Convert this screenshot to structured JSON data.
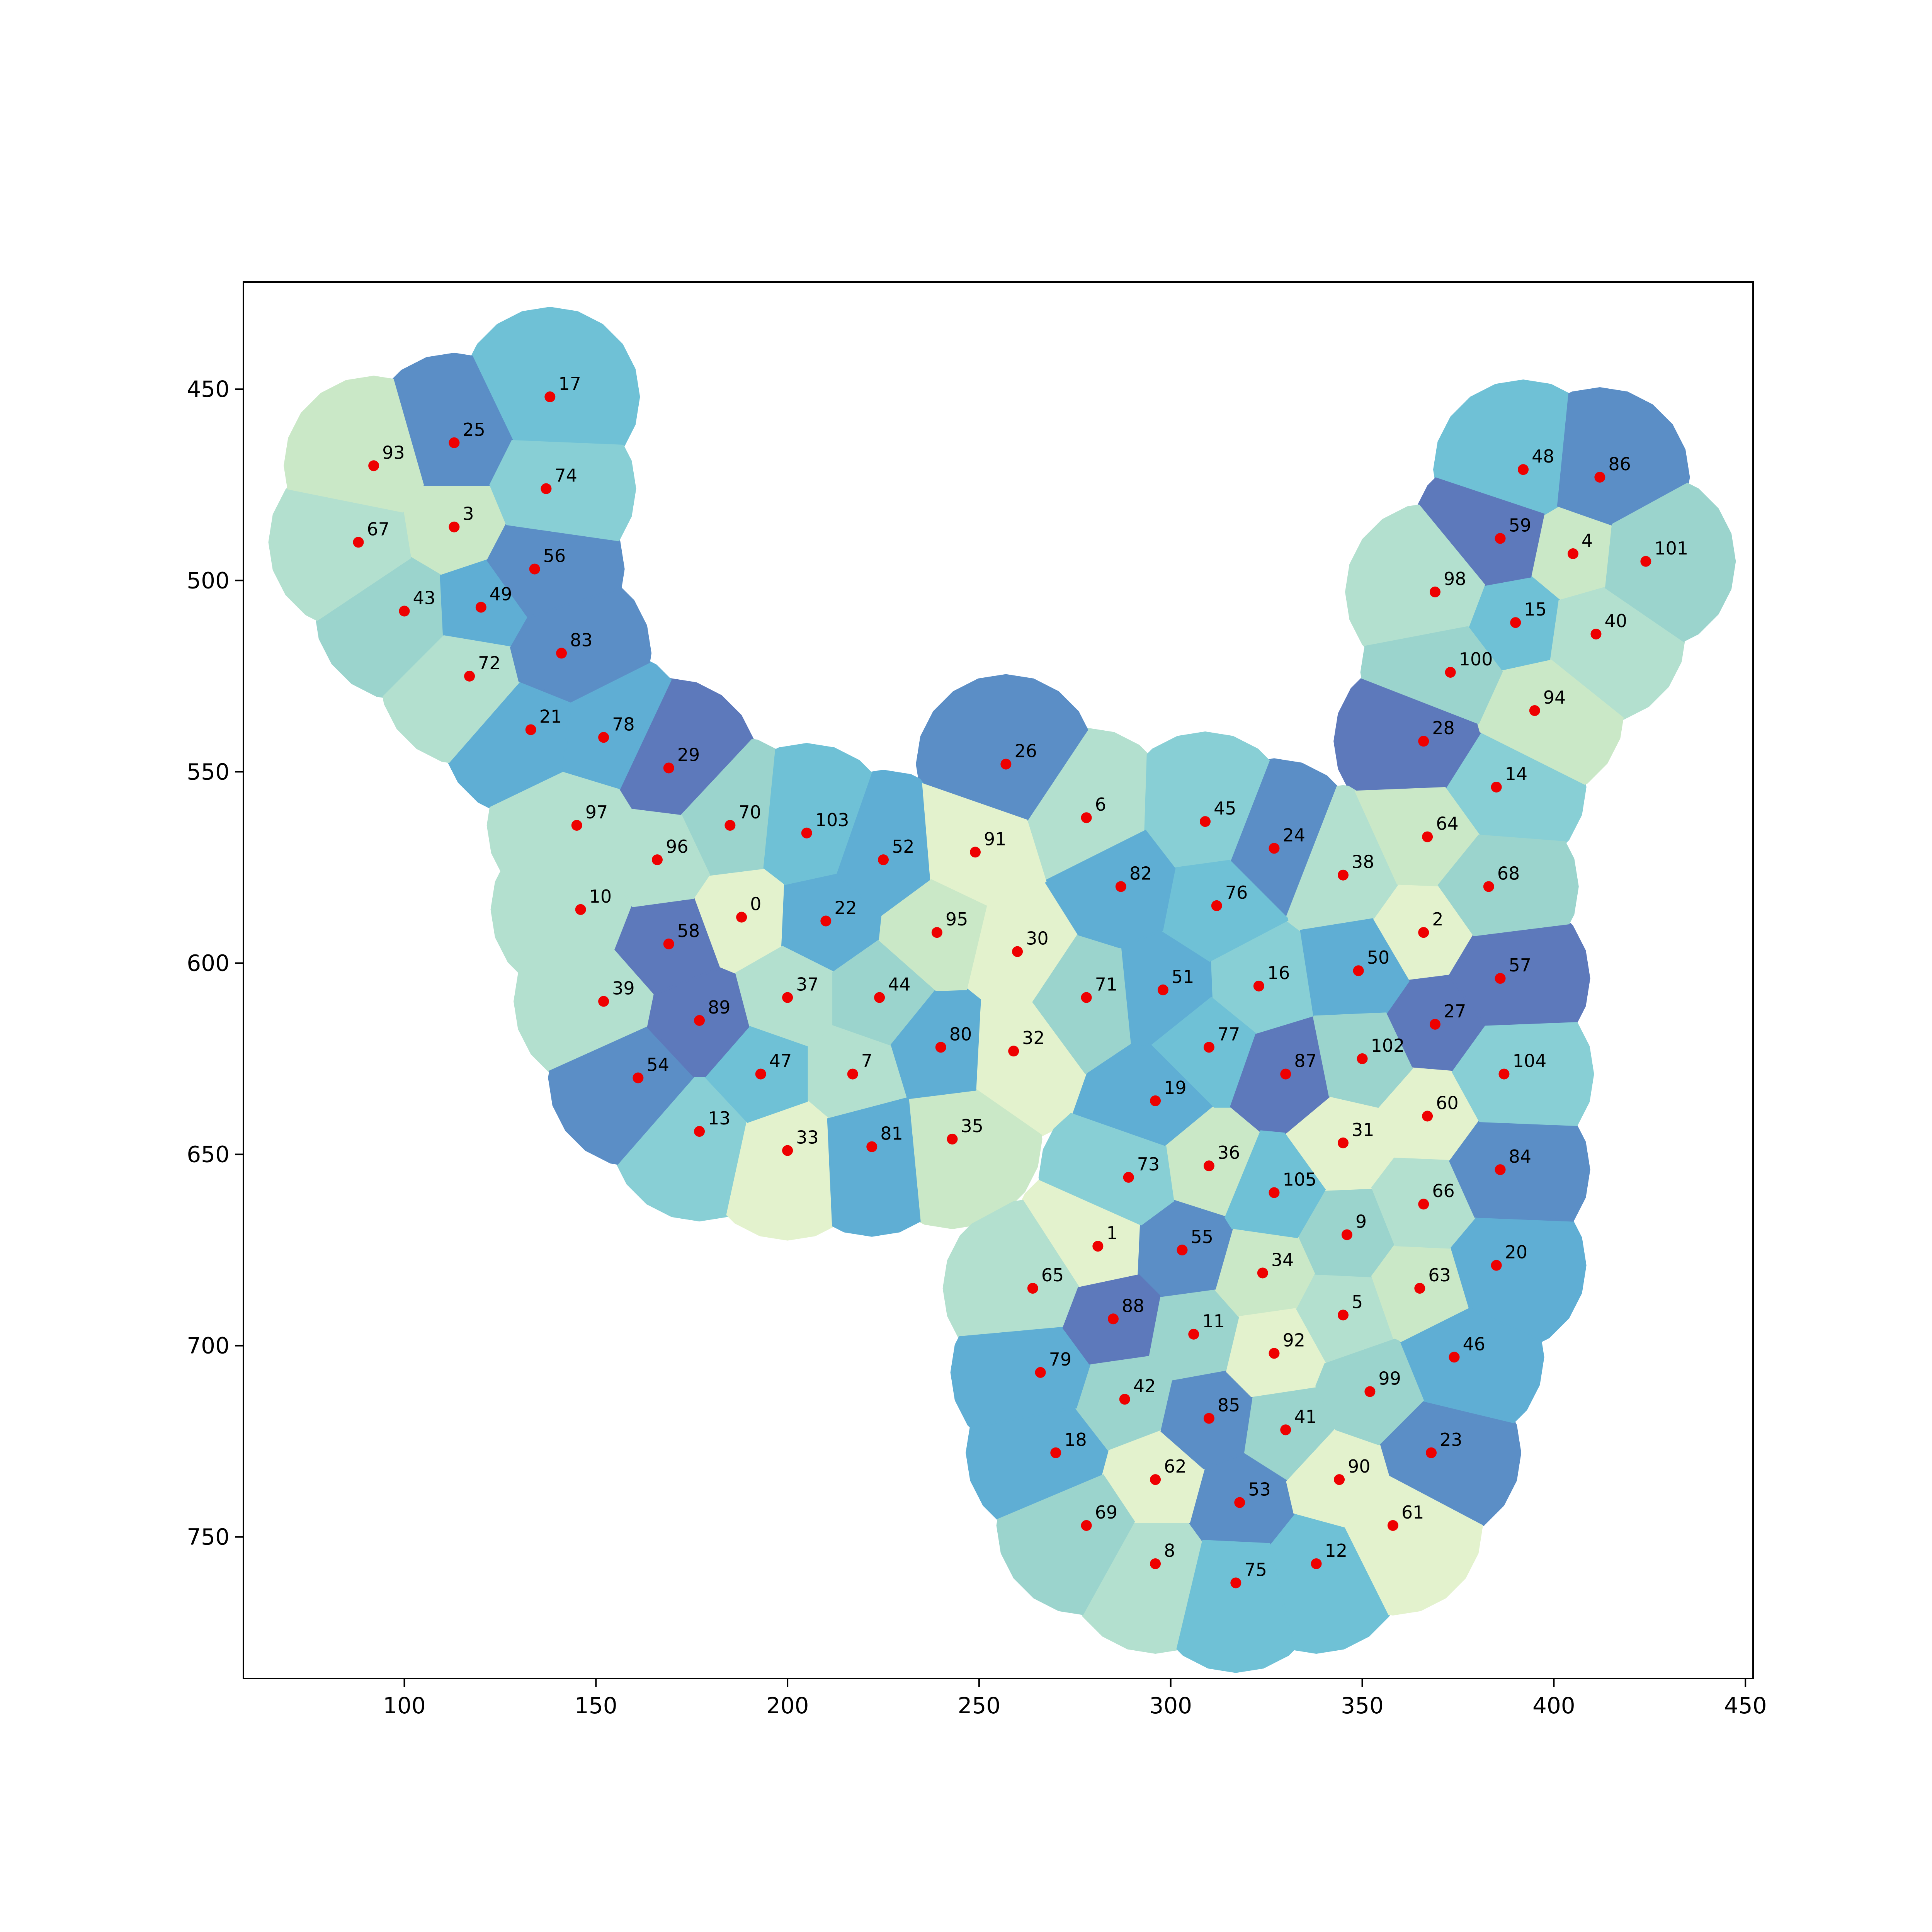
{
  "chart_data": {
    "type": "scatter",
    "title": "",
    "xlabel": "",
    "ylabel": "",
    "xlim": [
      58,
      452
    ],
    "ylim": [
      787,
      422
    ],
    "y_inverted": true,
    "grid": false,
    "legend": "none",
    "x_ticks": [
      "100",
      "150",
      "200",
      "250",
      "300",
      "350",
      "400",
      "450"
    ],
    "y_ticks": [
      "450",
      "500",
      "550",
      "600",
      "650",
      "700",
      "750"
    ],
    "marker_color": "#ee0000",
    "region_palette": [
      "#e3f2cd",
      "#cae8c7",
      "#b3e0cf",
      "#9bd4cd",
      "#88cfd5",
      "#6fc1d6",
      "#5faed4",
      "#5b8ec6",
      "#5d79bb"
    ],
    "points": [
      {
        "id": "0",
        "x": 188,
        "y": 588,
        "shade": 0
      },
      {
        "id": "1",
        "x": 281,
        "y": 674,
        "shade": 0
      },
      {
        "id": "2",
        "x": 366,
        "y": 592,
        "shade": 0
      },
      {
        "id": "3",
        "x": 113,
        "y": 486,
        "shade": 1
      },
      {
        "id": "4",
        "x": 405,
        "y": 493,
        "shade": 1
      },
      {
        "id": "5",
        "x": 345,
        "y": 692,
        "shade": 2
      },
      {
        "id": "6",
        "x": 278,
        "y": 562,
        "shade": 2
      },
      {
        "id": "7",
        "x": 217,
        "y": 629,
        "shade": 2
      },
      {
        "id": "8",
        "x": 296,
        "y": 757,
        "shade": 2
      },
      {
        "id": "9",
        "x": 346,
        "y": 671,
        "shade": 3
      },
      {
        "id": "10",
        "x": 146,
        "y": 586,
        "shade": 2
      },
      {
        "id": "11",
        "x": 306,
        "y": 697,
        "shade": 3
      },
      {
        "id": "12",
        "x": 338,
        "y": 757,
        "shade": 5
      },
      {
        "id": "13",
        "x": 177,
        "y": 644,
        "shade": 4
      },
      {
        "id": "14",
        "x": 385,
        "y": 554,
        "shade": 4
      },
      {
        "id": "15",
        "x": 390,
        "y": 511,
        "shade": 5
      },
      {
        "id": "16",
        "x": 323,
        "y": 606,
        "shade": 4
      },
      {
        "id": "17",
        "x": 138,
        "y": 452,
        "shade": 5
      },
      {
        "id": "18",
        "x": 270,
        "y": 728,
        "shade": 6
      },
      {
        "id": "19",
        "x": 296,
        "y": 636,
        "shade": 6
      },
      {
        "id": "20",
        "x": 385,
        "y": 679,
        "shade": 6
      },
      {
        "id": "21",
        "x": 133,
        "y": 539,
        "shade": 6
      },
      {
        "id": "22",
        "x": 210,
        "y": 589,
        "shade": 6
      },
      {
        "id": "23",
        "x": 368,
        "y": 728,
        "shade": 7
      },
      {
        "id": "24",
        "x": 327,
        "y": 570,
        "shade": 7
      },
      {
        "id": "25",
        "x": 113,
        "y": 464,
        "shade": 7
      },
      {
        "id": "26",
        "x": 257,
        "y": 548,
        "shade": 7
      },
      {
        "id": "27",
        "x": 369,
        "y": 616,
        "shade": 8
      },
      {
        "id": "28",
        "x": 366,
        "y": 542,
        "shade": 8
      },
      {
        "id": "29",
        "x": 169,
        "y": 549,
        "shade": 8
      },
      {
        "id": "30",
        "x": 260,
        "y": 597,
        "shade": 0
      },
      {
        "id": "31",
        "x": 345,
        "y": 647,
        "shade": 0
      },
      {
        "id": "32",
        "x": 259,
        "y": 623,
        "shade": 0
      },
      {
        "id": "33",
        "x": 200,
        "y": 649,
        "shade": 0
      },
      {
        "id": "34",
        "x": 324,
        "y": 681,
        "shade": 1
      },
      {
        "id": "35",
        "x": 243,
        "y": 646,
        "shade": 1
      },
      {
        "id": "36",
        "x": 310,
        "y": 653,
        "shade": 1
      },
      {
        "id": "37",
        "x": 200,
        "y": 609,
        "shade": 2
      },
      {
        "id": "38",
        "x": 345,
        "y": 577,
        "shade": 2
      },
      {
        "id": "39",
        "x": 152,
        "y": 610,
        "shade": 2
      },
      {
        "id": "40",
        "x": 411,
        "y": 514,
        "shade": 2
      },
      {
        "id": "41",
        "x": 330,
        "y": 722,
        "shade": 3
      },
      {
        "id": "42",
        "x": 288,
        "y": 714,
        "shade": 3
      },
      {
        "id": "43",
        "x": 100,
        "y": 508,
        "shade": 3
      },
      {
        "id": "44",
        "x": 224,
        "y": 609,
        "shade": 3
      },
      {
        "id": "45",
        "x": 309,
        "y": 563,
        "shade": 4
      },
      {
        "id": "46",
        "x": 374,
        "y": 703,
        "shade": 6
      },
      {
        "id": "47",
        "x": 193,
        "y": 629,
        "shade": 5
      },
      {
        "id": "48",
        "x": 392,
        "y": 471,
        "shade": 5
      },
      {
        "id": "49",
        "x": 120,
        "y": 507,
        "shade": 6
      },
      {
        "id": "50",
        "x": 349,
        "y": 602,
        "shade": 6
      },
      {
        "id": "51",
        "x": 298,
        "y": 607,
        "shade": 6
      },
      {
        "id": "52",
        "x": 225,
        "y": 573,
        "shade": 6
      },
      {
        "id": "53",
        "x": 318,
        "y": 741,
        "shade": 7
      },
      {
        "id": "54",
        "x": 161,
        "y": 630,
        "shade": 7
      },
      {
        "id": "55",
        "x": 303,
        "y": 675,
        "shade": 7
      },
      {
        "id": "56",
        "x": 134,
        "y": 497,
        "shade": 7
      },
      {
        "id": "57",
        "x": 386,
        "y": 604,
        "shade": 8
      },
      {
        "id": "58",
        "x": 169,
        "y": 595,
        "shade": 8
      },
      {
        "id": "59",
        "x": 386,
        "y": 489,
        "shade": 8
      },
      {
        "id": "60",
        "x": 367,
        "y": 640,
        "shade": 0
      },
      {
        "id": "61",
        "x": 358,
        "y": 747,
        "shade": 0
      },
      {
        "id": "62",
        "x": 296,
        "y": 735,
        "shade": 0
      },
      {
        "id": "63",
        "x": 365,
        "y": 685,
        "shade": 1
      },
      {
        "id": "64",
        "x": 367,
        "y": 567,
        "shade": 1
      },
      {
        "id": "65",
        "x": 264,
        "y": 685,
        "shade": 2
      },
      {
        "id": "66",
        "x": 366,
        "y": 663,
        "shade": 2
      },
      {
        "id": "67",
        "x": 88,
        "y": 490,
        "shade": 2
      },
      {
        "id": "68",
        "x": 383,
        "y": 580,
        "shade": 3
      },
      {
        "id": "69",
        "x": 278,
        "y": 747,
        "shade": 3
      },
      {
        "id": "70",
        "x": 185,
        "y": 564,
        "shade": 3
      },
      {
        "id": "71",
        "x": 278,
        "y": 609,
        "shade": 3
      },
      {
        "id": "72",
        "x": 117,
        "y": 525,
        "shade": 2
      },
      {
        "id": "73",
        "x": 289,
        "y": 656,
        "shade": 4
      },
      {
        "id": "74",
        "x": 137,
        "y": 476,
        "shade": 4
      },
      {
        "id": "75",
        "x": 317,
        "y": 762,
        "shade": 5
      },
      {
        "id": "76",
        "x": 312,
        "y": 585,
        "shade": 5
      },
      {
        "id": "77",
        "x": 310,
        "y": 622,
        "shade": 5
      },
      {
        "id": "78",
        "x": 152,
        "y": 541,
        "shade": 6
      },
      {
        "id": "79",
        "x": 266,
        "y": 707,
        "shade": 6
      },
      {
        "id": "80",
        "x": 240,
        "y": 622,
        "shade": 6
      },
      {
        "id": "81",
        "x": 222,
        "y": 648,
        "shade": 6
      },
      {
        "id": "82",
        "x": 287,
        "y": 580,
        "shade": 6
      },
      {
        "id": "83",
        "x": 141,
        "y": 519,
        "shade": 7
      },
      {
        "id": "84",
        "x": 386,
        "y": 654,
        "shade": 7
      },
      {
        "id": "85",
        "x": 310,
        "y": 719,
        "shade": 7
      },
      {
        "id": "86",
        "x": 412,
        "y": 473,
        "shade": 7
      },
      {
        "id": "87",
        "x": 330,
        "y": 629,
        "shade": 8
      },
      {
        "id": "88",
        "x": 285,
        "y": 693,
        "shade": 8
      },
      {
        "id": "89",
        "x": 177,
        "y": 615,
        "shade": 8
      },
      {
        "id": "90",
        "x": 344,
        "y": 735,
        "shade": 0
      },
      {
        "id": "91",
        "x": 249,
        "y": 571,
        "shade": 0
      },
      {
        "id": "92",
        "x": 327,
        "y": 702,
        "shade": 0
      },
      {
        "id": "93",
        "x": 92,
        "y": 470,
        "shade": 1
      },
      {
        "id": "94",
        "x": 395,
        "y": 534,
        "shade": 1
      },
      {
        "id": "95",
        "x": 239,
        "y": 592,
        "shade": 1
      },
      {
        "id": "96",
        "x": 166,
        "y": 573,
        "shade": 2
      },
      {
        "id": "97",
        "x": 145,
        "y": 564,
        "shade": 2
      },
      {
        "id": "98",
        "x": 369,
        "y": 503,
        "shade": 2
      },
      {
        "id": "99",
        "x": 352,
        "y": 712,
        "shade": 3
      },
      {
        "id": "100",
        "x": 373,
        "y": 524,
        "shade": 3
      },
      {
        "id": "101",
        "x": 424,
        "y": 495,
        "shade": 3
      },
      {
        "id": "102",
        "x": 350,
        "y": 625,
        "shade": 3
      },
      {
        "id": "103",
        "x": 205,
        "y": 566,
        "shade": 5
      },
      {
        "id": "104",
        "x": 387,
        "y": 629,
        "shade": 4
      },
      {
        "id": "105",
        "x": 327,
        "y": 660,
        "shade": 5
      }
    ]
  }
}
